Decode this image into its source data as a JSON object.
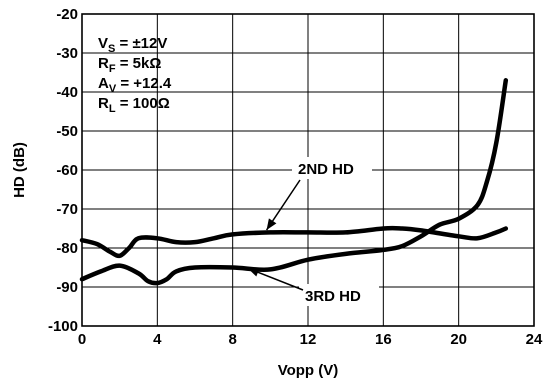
{
  "chart_data": {
    "type": "line",
    "xlabel": "Vopp (V)",
    "ylabel": "HD (dB)",
    "xlim": [
      0,
      24
    ],
    "ylim": [
      -100,
      -20
    ],
    "x_ticks": [
      "0",
      "4",
      "8",
      "12",
      "16",
      "20",
      "24"
    ],
    "y_ticks": [
      "-20",
      "-30",
      "-40",
      "-50",
      "-60",
      "-70",
      "-80",
      "-90",
      "-100"
    ],
    "grid": true,
    "conditions": [
      {
        "base": "V",
        "sub": "S",
        "rest": " = ±12V"
      },
      {
        "base": "R",
        "sub": "F",
        "rest": " = 5kΩ"
      },
      {
        "base": "A",
        "sub": "V",
        "rest": " = +12.4"
      },
      {
        "base": "R",
        "sub": "L",
        "rest": " = 100Ω"
      }
    ],
    "series": [
      {
        "name": "2ND HD",
        "x": [
          0,
          0.8,
          1.5,
          2.0,
          2.5,
          3.0,
          4.0,
          5.0,
          6.0,
          7.0,
          8.0,
          10.0,
          12.0,
          14.0,
          16.0,
          17.0,
          18.0,
          20.0,
          21.0,
          22.0,
          22.5
        ],
        "y": [
          -78,
          -79,
          -81,
          -82,
          -80,
          -77.5,
          -77.5,
          -78.5,
          -78.5,
          -77.5,
          -76.5,
          -76,
          -76,
          -76,
          -75,
          -75,
          -75.5,
          -77,
          -77.5,
          -76,
          -75
        ]
      },
      {
        "name": "3RD HD",
        "x": [
          0,
          1.0,
          2.0,
          3.0,
          3.5,
          4.0,
          4.5,
          5.0,
          6.0,
          8.0,
          10.0,
          12.0,
          14.0,
          16.0,
          17.0,
          18.0,
          19.0,
          20.0,
          21.0,
          21.5,
          22.0,
          22.5
        ],
        "y": [
          -88,
          -86,
          -84.5,
          -86.5,
          -88.5,
          -89,
          -88,
          -86,
          -85,
          -85,
          -85.5,
          -83,
          -81.5,
          -80.5,
          -79.5,
          -77,
          -74,
          -72.5,
          -69,
          -63,
          -53,
          -37
        ]
      }
    ],
    "annotations": [
      {
        "text": "2ND HD",
        "points_to": "2ND HD"
      },
      {
        "text": "3RD HD",
        "points_to": "3RD HD"
      }
    ]
  }
}
